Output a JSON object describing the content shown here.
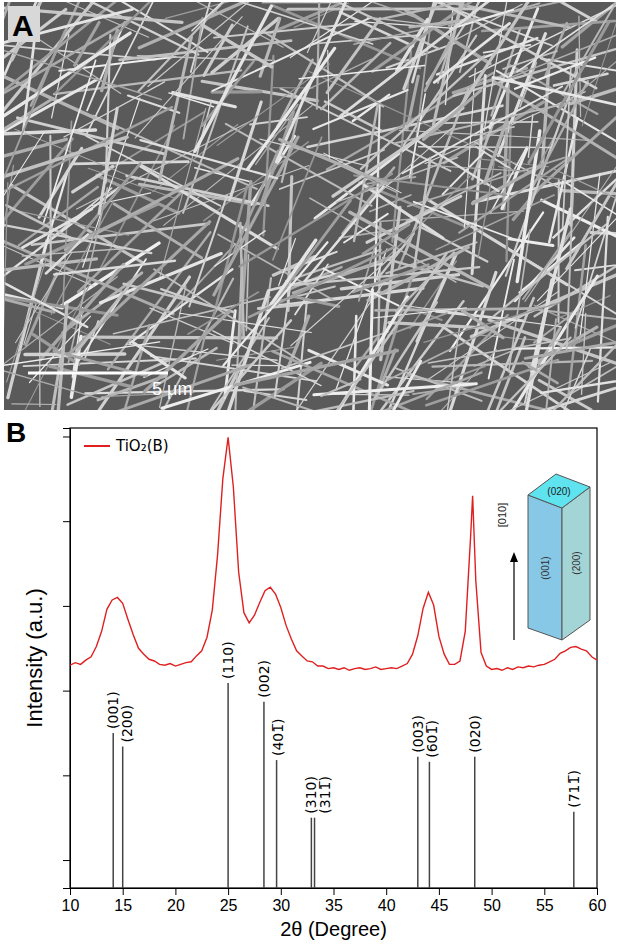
{
  "chart_data": [
    {
      "type": "image",
      "panel": "A",
      "scale_bar": "5 μm"
    },
    {
      "type": "line",
      "panel": "B",
      "x_label": "2θ (Degree)",
      "y_label": "Intensity (a.u.)",
      "xlim": [
        10,
        60
      ],
      "xticks": [
        10,
        15,
        20,
        25,
        30,
        35,
        40,
        45,
        50,
        55,
        60
      ],
      "ylim": [
        -0.33,
        5.1
      ],
      "yticks": [
        0,
        1,
        2,
        3,
        4,
        5
      ],
      "tick_labels": "x",
      "legend": "upper left",
      "series": [
        {
          "name": "TiO₂(B)",
          "color": "#e02020",
          "x": [
            10,
            10.5,
            11,
            11.5,
            12,
            12.5,
            13,
            13.5,
            14,
            14.5,
            15,
            15.5,
            16,
            16.5,
            17,
            17.5,
            18,
            18.5,
            19,
            19.5,
            20,
            20.5,
            21,
            21.5,
            22,
            22.5,
            23,
            23.5,
            24,
            24.5,
            25,
            25.5,
            26,
            26.5,
            27,
            27.5,
            28,
            28.5,
            29,
            29.5,
            30,
            30.5,
            31,
            31.5,
            32,
            32.5,
            33,
            33.5,
            34,
            34.5,
            35,
            35.5,
            36,
            36.5,
            37,
            37.5,
            38,
            38.5,
            39,
            39.5,
            40,
            40.5,
            41,
            41.5,
            42,
            42.5,
            43,
            43.5,
            44,
            44.5,
            45,
            45.5,
            46,
            46.5,
            47,
            47.5,
            48,
            48.2,
            48.5,
            49,
            49.5,
            50,
            50.5,
            51,
            51.5,
            52,
            52.5,
            53,
            53.5,
            54,
            54.5,
            55,
            55.5,
            56,
            56.5,
            57,
            57.5,
            58,
            58.5,
            59,
            59.5,
            60
          ],
          "values": [
            2.3,
            2.33,
            2.31,
            2.36,
            2.4,
            2.52,
            2.7,
            2.96,
            3.07,
            3.1,
            3.03,
            2.84,
            2.66,
            2.5,
            2.43,
            2.37,
            2.35,
            2.31,
            2.3,
            2.32,
            2.29,
            2.31,
            2.33,
            2.34,
            2.41,
            2.47,
            2.63,
            2.95,
            3.6,
            4.5,
            4.99,
            4.4,
            3.4,
            2.92,
            2.8,
            2.89,
            3.04,
            3.18,
            3.22,
            3.14,
            2.98,
            2.77,
            2.61,
            2.47,
            2.41,
            2.35,
            2.34,
            2.29,
            2.29,
            2.26,
            2.27,
            2.25,
            2.27,
            2.24,
            2.26,
            2.27,
            2.25,
            2.26,
            2.28,
            2.25,
            2.26,
            2.27,
            2.26,
            2.29,
            2.32,
            2.43,
            2.65,
            2.97,
            3.16,
            3.01,
            2.64,
            2.43,
            2.31,
            2.31,
            2.35,
            2.7,
            3.8,
            4.3,
            3.3,
            2.45,
            2.29,
            2.25,
            2.26,
            2.24,
            2.27,
            2.25,
            2.28,
            2.27,
            2.29,
            2.28,
            2.3,
            2.31,
            2.34,
            2.37,
            2.44,
            2.47,
            2.51,
            2.52,
            2.49,
            2.47,
            2.4,
            2.36
          ]
        }
      ],
      "sticks": {
        "color": "#444444",
        "x": [
          14.1,
          15.0,
          25.0,
          28.4,
          29.6,
          32.9,
          33.2,
          43.0,
          44.1,
          48.4,
          57.8
        ],
        "values": [
          1.5,
          1.34,
          2.09,
          1.87,
          1.18,
          0.5,
          0.5,
          1.22,
          1.16,
          1.22,
          0.57
        ],
        "labels": [
          "(001)",
          "(200)",
          "(110)",
          "(002)",
          "(401̅)",
          "(310)",
          "(311̅)",
          "(003)",
          "(601̅)",
          "(020)",
          "(711̅)"
        ]
      },
      "annotations": [
        {
          "text": "(020)"
        },
        {
          "text": "(001)"
        },
        {
          "text": "(200)"
        },
        {
          "text": "[010]"
        }
      ]
    }
  ]
}
